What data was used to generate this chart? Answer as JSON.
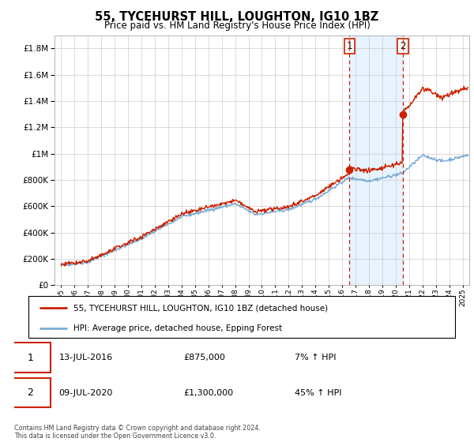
{
  "title": "55, TYCEHURST HILL, LOUGHTON, IG10 1BZ",
  "subtitle": "Price paid vs. HM Land Registry's House Price Index (HPI)",
  "legend_line1": "55, TYCEHURST HILL, LOUGHTON, IG10 1BZ (detached house)",
  "legend_line2": "HPI: Average price, detached house, Epping Forest",
  "sale1_label": "1",
  "sale1_date": "13-JUL-2016",
  "sale1_price": "£875,000",
  "sale1_hpi": "7% ↑ HPI",
  "sale2_label": "2",
  "sale2_date": "09-JUL-2020",
  "sale2_price": "£1,300,000",
  "sale2_hpi": "45% ↑ HPI",
  "footer": "Contains HM Land Registry data © Crown copyright and database right 2024.\nThis data is licensed under the Open Government Licence v3.0.",
  "sale1_year": 2016.54,
  "sale2_year": 2020.54,
  "sale1_price_val": 875000,
  "sale2_price_val": 1300000,
  "hpi_color": "#7aacd6",
  "price_color": "#cc2200",
  "sale_marker_color": "#cc2200",
  "vline_color": "#cc2200",
  "shade_color": "#ddeeff",
  "ylim": [
    0,
    1900000
  ],
  "yticks": [
    0,
    200000,
    400000,
    600000,
    800000,
    1000000,
    1200000,
    1400000,
    1600000,
    1800000
  ],
  "xlim": [
    1994.5,
    2025.5
  ],
  "xticks": [
    1995,
    1996,
    1997,
    1998,
    1999,
    2000,
    2001,
    2002,
    2003,
    2004,
    2005,
    2006,
    2007,
    2008,
    2009,
    2010,
    2011,
    2012,
    2013,
    2014,
    2015,
    2016,
    2017,
    2018,
    2019,
    2020,
    2021,
    2022,
    2023,
    2024,
    2025
  ],
  "background_color": "#ffffff",
  "grid_color": "#cccccc"
}
